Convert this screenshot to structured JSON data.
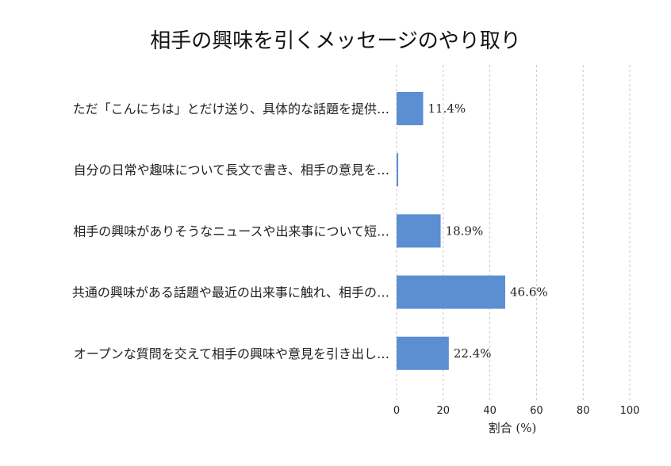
{
  "chart_data": {
    "type": "bar",
    "orientation": "horizontal",
    "title": "相手の興味を引くメッセージのやり取り",
    "xlabel": "割合 (%)",
    "ylabel": "",
    "xlim": [
      0,
      100
    ],
    "xticks": [
      0,
      20,
      40,
      60,
      80,
      100
    ],
    "grid": true,
    "bar_color": "#5b8fd1",
    "categories": [
      "ただ「こんにちは」とだけ送り、具体的な話題を提供…",
      "自分の日常や趣味について長文で書き、相手の意見を…",
      "相手の興味がありそうなニュースや出来事について短…",
      "共通の興味がある話題や最近の出来事に触れ、相手の…",
      "オープンな質問を交えて相手の興味や意見を引き出し…"
    ],
    "values": [
      11.4,
      0.7,
      18.9,
      46.6,
      22.4
    ],
    "value_labels": [
      "11.4%",
      "",
      "18.9%",
      "46.6%",
      "22.4%"
    ]
  }
}
